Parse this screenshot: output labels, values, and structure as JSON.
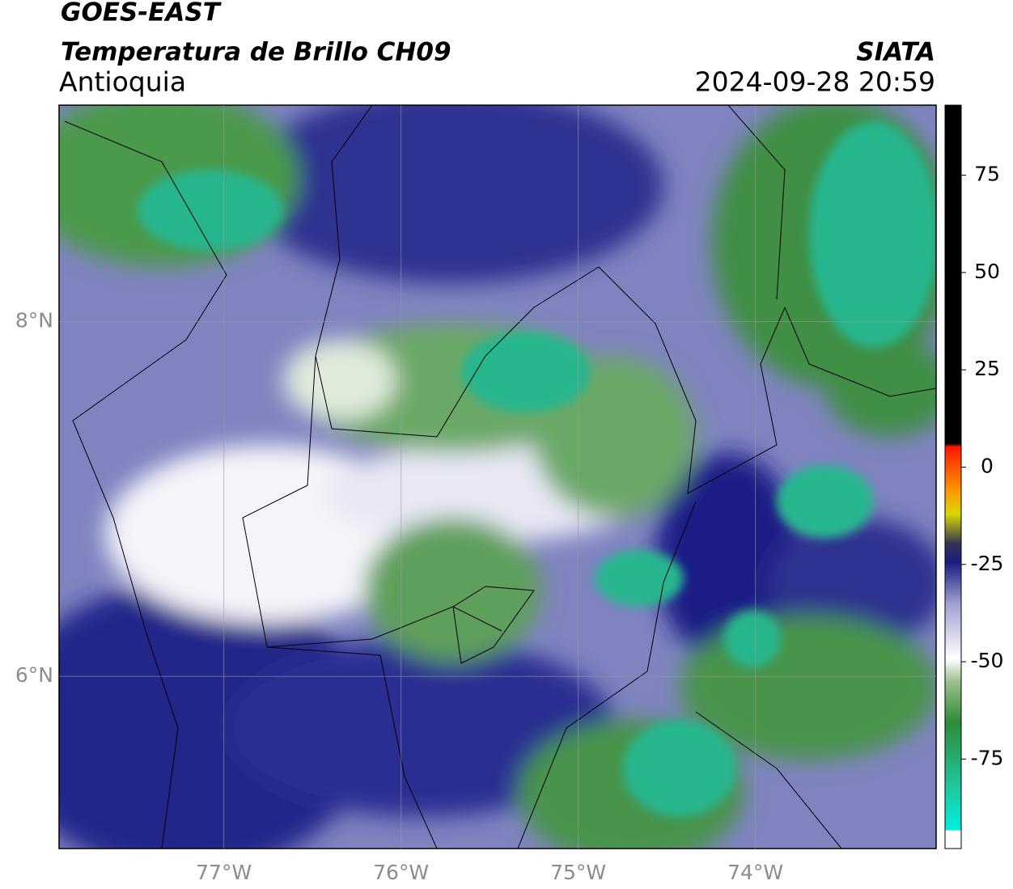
{
  "map": {
    "title": "GOES-EAST",
    "subtitle": "Temperatura de Brillo CH09",
    "region": "Antioquia",
    "source": "SIATA",
    "datetime": "2024-09-28 20:59",
    "xlim": [
      -77.93,
      -72.98
    ],
    "ylim": [
      5.03,
      9.22
    ],
    "xticks": [
      {
        "value": -77,
        "label": "77°W"
      },
      {
        "value": -76,
        "label": "76°W"
      },
      {
        "value": -75,
        "label": "75°W"
      },
      {
        "value": -74,
        "label": "74°W"
      }
    ],
    "yticks": [
      {
        "value": 8,
        "label": "8°N"
      },
      {
        "value": 6,
        "label": "6°N"
      }
    ],
    "grid": true,
    "colorbar": {
      "lim": [
        -98,
        93
      ],
      "ticks": [
        75,
        50,
        25,
        0,
        -25,
        -50,
        -75
      ]
    }
  }
}
